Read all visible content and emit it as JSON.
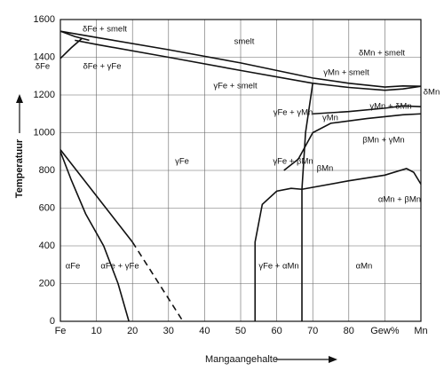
{
  "chart_data": {
    "type": "line",
    "x_label": "Mangaangehalte",
    "y_label": "Temperatuur",
    "xlim": [
      0,
      100
    ],
    "ylim": [
      0,
      1600
    ],
    "xticks": [
      {
        "value": 0,
        "label": "Fe"
      },
      10,
      20,
      30,
      40,
      50,
      60,
      70,
      80,
      {
        "value": 90,
        "label": "Gew%"
      },
      {
        "value": 100,
        "label": "Mn"
      }
    ],
    "yticks": [
      0,
      200,
      400,
      600,
      800,
      1000,
      1200,
      1400,
      1600
    ],
    "grid": true,
    "color": "#111111",
    "series": [
      {
        "x": [
          0,
          10,
          30,
          50,
          70,
          80,
          90,
          95,
          100
        ],
        "values": [
          1538,
          1505,
          1440,
          1370,
          1290,
          1262,
          1242,
          1248,
          1246
        ],
        "dashed": false
      },
      {
        "x": [
          4,
          10,
          30,
          50,
          70,
          80,
          90,
          95,
          100
        ],
        "values": [
          1490,
          1468,
          1400,
          1330,
          1262,
          1240,
          1225,
          1232,
          1246
        ],
        "dashed": false
      },
      {
        "x": [
          0,
          3,
          6
        ],
        "values": [
          1394,
          1450,
          1500
        ],
        "dashed": false
      },
      {
        "x": [
          0,
          4,
          8
        ],
        "values": [
          1538,
          1510,
          1490
        ],
        "dashed": false
      },
      {
        "x": [
          70,
          80,
          90,
          95,
          100
        ],
        "values": [
          1100,
          1112,
          1130,
          1142,
          1138
        ],
        "dashed": false
      },
      {
        "x": [
          62,
          66,
          70,
          75,
          85,
          95,
          100
        ],
        "values": [
          800,
          860,
          1000,
          1050,
          1075,
          1095,
          1100
        ],
        "dashed": false
      },
      {
        "x": [
          67,
          80,
          90,
          96,
          98,
          100
        ],
        "values": [
          700,
          745,
          775,
          810,
          790,
          727
        ],
        "dashed": false
      },
      {
        "x": [
          54,
          54,
          56,
          60,
          64,
          67
        ],
        "values": [
          0,
          420,
          620,
          690,
          705,
          700
        ],
        "dashed": false
      },
      {
        "x": [
          67,
          67,
          68,
          70
        ],
        "values": [
          0,
          700,
          1000,
          1262
        ],
        "dashed": false
      },
      {
        "x": [
          0,
          20
        ],
        "values": [
          910,
          420
        ],
        "dashed": false
      },
      {
        "x": [
          20,
          34
        ],
        "values": [
          420,
          0
        ],
        "dashed": true
      },
      {
        "x": [
          0,
          3,
          7,
          12,
          16,
          19
        ],
        "values": [
          900,
          750,
          570,
          400,
          200,
          0
        ],
        "dashed": false
      }
    ],
    "annotations": [
      "δFe + smelt",
      "smelt",
      "δFe",
      "δFe + γFe",
      "γFe + smelt",
      "δMn + smelt",
      "γMn + smelt",
      "δMn",
      "γFe + γMn",
      "γMn",
      "γMn + δMn",
      "γFe",
      "βMn + γMn",
      "γFe + βMn",
      "βMn",
      "αMn + βMn",
      "αFe",
      "αFe + γFe",
      "γFe + αMn",
      "αMn"
    ]
  }
}
